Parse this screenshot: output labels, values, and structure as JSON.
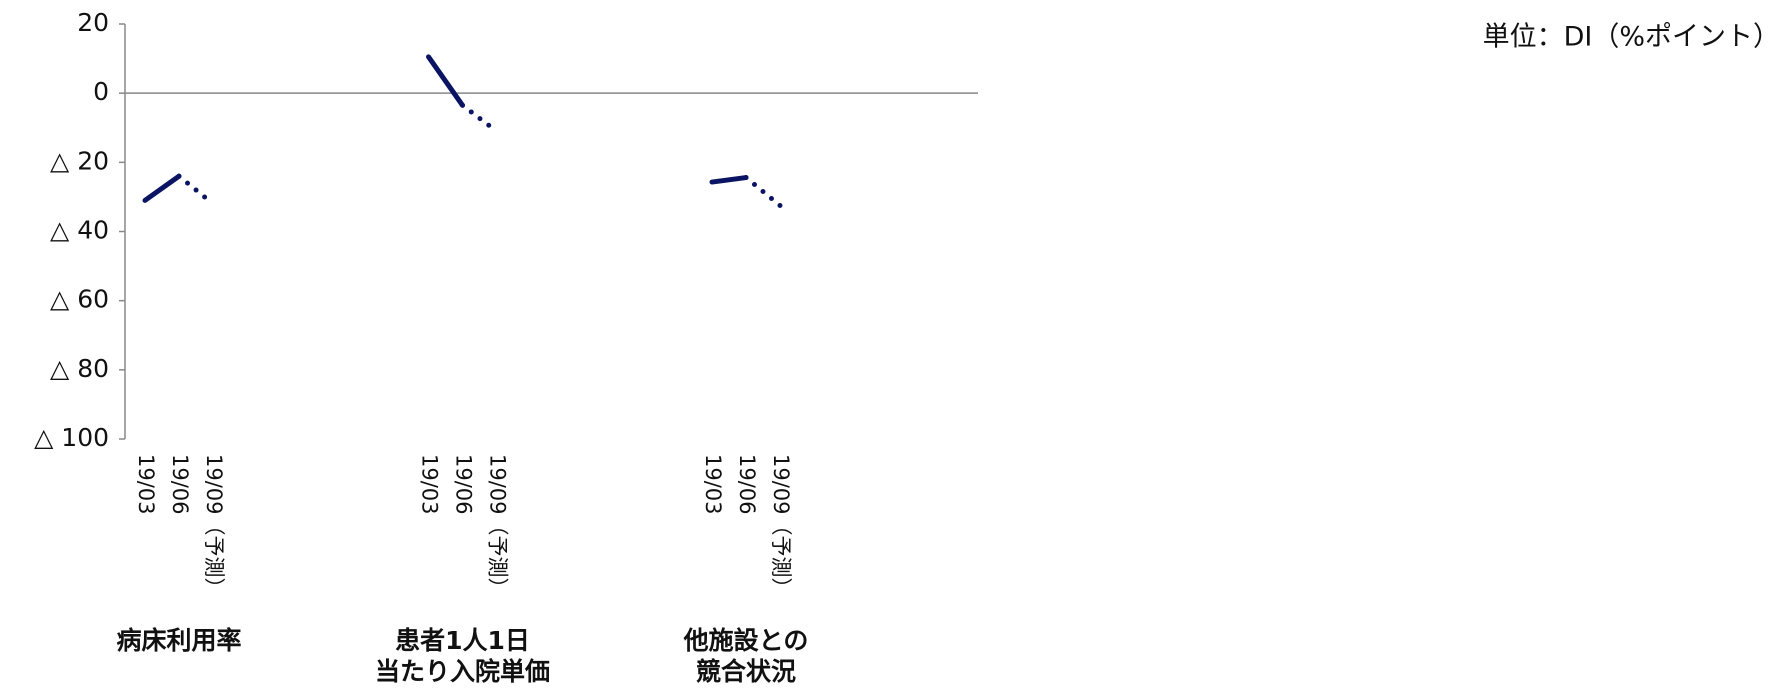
{
  "chart_data": {
    "type": "line",
    "unit_label": "単位：DI（%ポイント）",
    "color": "#0b1462",
    "ylim": [
      -100,
      20
    ],
    "yticks": [
      {
        "value": -100,
        "label": "△ 100"
      },
      {
        "value": -80,
        "label": "△ 80"
      },
      {
        "value": -60,
        "label": "△ 60"
      },
      {
        "value": -40,
        "label": "△ 40"
      },
      {
        "value": -20,
        "label": "△ 20"
      },
      0,
      20
    ],
    "groups": [
      {
        "name": [
          "病床利用率"
        ],
        "x": [
          "19/03",
          "19/06",
          "19/09（予測）"
        ],
        "values": [
          -31,
          -24,
          -32
        ]
      },
      {
        "name": [
          "患者1人1日",
          "当たり入院単価"
        ],
        "x": [
          "19/03",
          "19/06",
          "19/09（予測）"
        ],
        "values": [
          10.5,
          -3.5,
          -11
        ]
      },
      {
        "name": [
          "他施設との",
          "競合状況"
        ],
        "x": [
          "19/03",
          "19/06",
          "19/09（予測）"
        ],
        "values": [
          -25.7,
          -24.4,
          -32.5
        ]
      }
    ]
  }
}
